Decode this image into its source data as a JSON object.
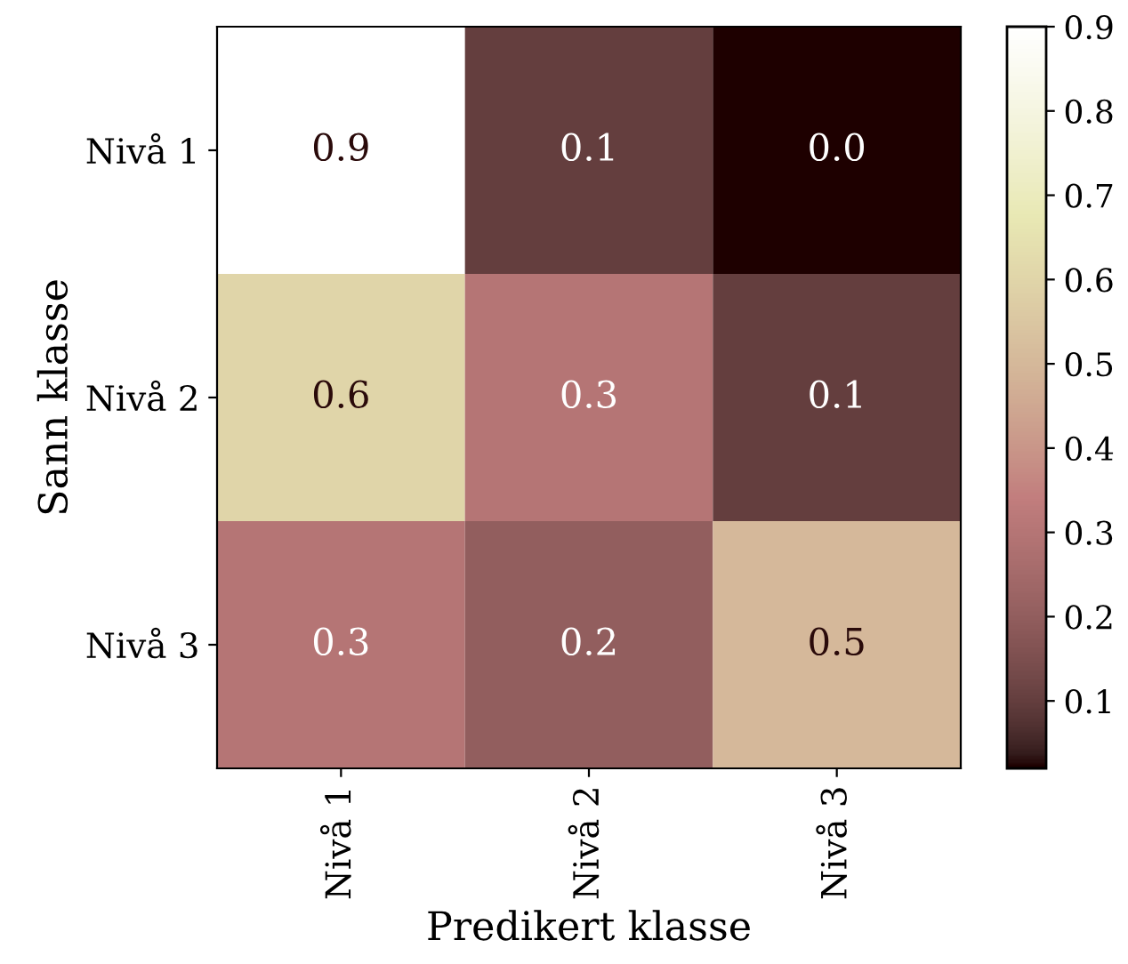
{
  "chart_data": {
    "type": "heatmap",
    "xlabel": "Predikert klasse",
    "ylabel": "Sann klasse",
    "categories": [
      "Nivå 1",
      "Nivå 2",
      "Nivå 3"
    ],
    "y_categories": [
      "Nivå 1",
      "Nivå 2",
      "Nivå 3"
    ],
    "cells": [
      [
        0.9,
        0.1,
        0.02
      ],
      [
        0.6,
        0.3,
        0.1
      ],
      [
        0.3,
        0.2,
        0.5
      ]
    ],
    "cell_labels": [
      [
        "0.9",
        "0.1",
        "0.0"
      ],
      [
        "0.6",
        "0.3",
        "0.1"
      ],
      [
        "0.3",
        "0.2",
        "0.5"
      ]
    ],
    "clim": [
      0.02,
      0.9
    ],
    "cticks": [
      0.1,
      0.2,
      0.3,
      0.4,
      0.5,
      0.6,
      0.7,
      0.8,
      0.9
    ]
  }
}
